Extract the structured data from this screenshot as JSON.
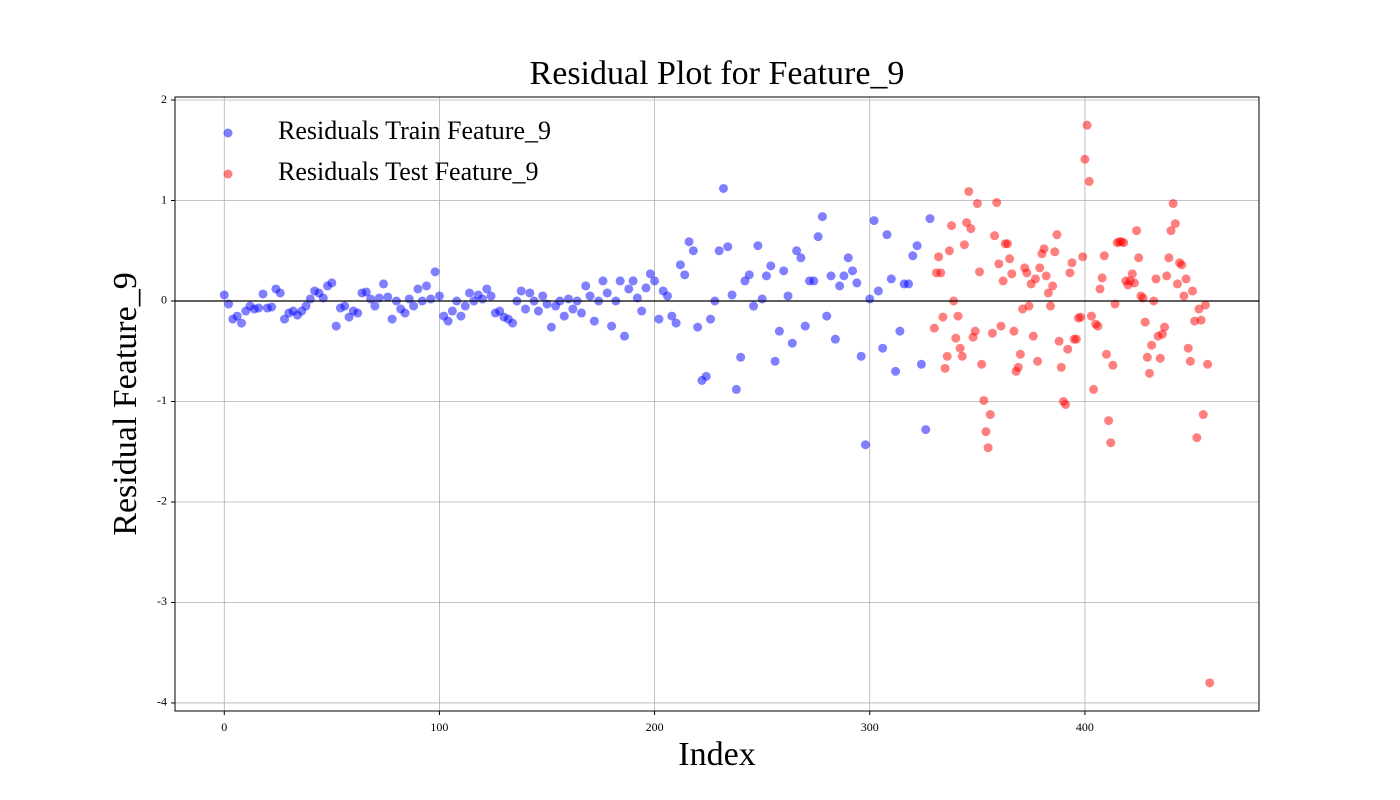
{
  "chart_data": {
    "type": "scatter",
    "title": "Residual Plot for Feature_9",
    "xlabel": "Index",
    "ylabel": "Residual Feature_9",
    "xlim": [
      -22.9,
      480.9
    ],
    "ylim": [
      -4.08,
      2.03
    ],
    "xticks": [
      0,
      100,
      200,
      300,
      400
    ],
    "yticks": [
      -4,
      -3,
      -2,
      -1,
      0,
      1,
      2
    ],
    "grid": true,
    "axhline": 0,
    "legend": "upper left",
    "alpha": 0.5,
    "series": [
      {
        "name": "Residuals Train Feature_9",
        "color": "blue",
        "x": [
          0,
          2,
          4,
          6,
          8,
          10,
          12,
          14,
          16,
          18,
          20,
          22,
          24,
          26,
          28,
          30,
          32,
          34,
          36,
          38,
          40,
          42,
          44,
          46,
          48,
          50,
          52,
          54,
          56,
          58,
          60,
          62,
          64,
          66,
          68,
          70,
          72,
          74,
          76,
          78,
          80,
          82,
          84,
          86,
          88,
          90,
          92,
          94,
          96,
          98,
          100,
          102,
          104,
          106,
          108,
          110,
          112,
          114,
          116,
          118,
          120,
          122,
          124,
          126,
          128,
          130,
          132,
          134,
          136,
          138,
          140,
          142,
          144,
          146,
          148,
          150,
          152,
          154,
          156,
          158,
          160,
          162,
          164,
          166,
          168,
          170,
          172,
          174,
          176,
          178,
          180,
          182,
          184,
          186,
          188,
          190,
          192,
          194,
          196,
          198,
          200,
          202,
          204,
          206,
          208,
          210,
          212,
          214,
          216,
          218,
          220,
          222,
          224,
          226,
          228,
          230,
          232,
          234,
          236,
          238,
          240,
          242,
          244,
          246,
          248,
          250,
          252,
          254,
          256,
          258,
          260,
          262,
          264,
          266,
          268,
          270,
          272,
          274,
          276,
          278,
          280,
          282,
          284,
          286,
          288,
          290,
          292,
          294,
          296,
          298,
          300,
          302,
          304,
          306,
          308,
          310,
          312,
          314,
          316,
          318,
          320,
          322,
          324,
          326,
          328
        ],
        "values": [
          0.06,
          -0.03,
          -0.18,
          -0.15,
          -0.22,
          -0.1,
          -0.05,
          -0.08,
          -0.07,
          0.07,
          -0.07,
          -0.06,
          0.12,
          0.08,
          -0.18,
          -0.12,
          -0.1,
          -0.14,
          -0.1,
          -0.05,
          0.02,
          0.1,
          0.08,
          0.03,
          0.15,
          0.18,
          -0.25,
          -0.07,
          -0.05,
          -0.16,
          -0.1,
          -0.12,
          0.08,
          0.09,
          0.02,
          -0.05,
          0.03,
          0.17,
          0.04,
          -0.18,
          0.0,
          -0.08,
          -0.12,
          0.02,
          -0.05,
          0.12,
          0.0,
          0.15,
          0.02,
          0.29,
          0.05,
          -0.15,
          -0.2,
          -0.1,
          0.0,
          -0.15,
          -0.05,
          0.08,
          0.0,
          0.06,
          0.02,
          0.12,
          0.05,
          -0.12,
          -0.1,
          -0.16,
          -0.18,
          -0.22,
          0.0,
          0.1,
          -0.08,
          0.08,
          0.0,
          -0.1,
          0.05,
          -0.03,
          -0.26,
          -0.05,
          0.0,
          -0.15,
          0.02,
          -0.08,
          0.0,
          -0.12,
          0.15,
          0.05,
          -0.2,
          0.0,
          0.2,
          0.08,
          -0.25,
          0.0,
          0.2,
          -0.35,
          0.12,
          0.2,
          0.03,
          -0.1,
          0.13,
          0.27,
          0.2,
          -0.18,
          0.1,
          0.05,
          -0.15,
          -0.22,
          0.36,
          0.26,
          0.59,
          0.5,
          -0.26,
          -0.79,
          -0.75,
          -0.18,
          0.0,
          0.5,
          1.12,
          0.54,
          0.06,
          -0.88,
          -0.56,
          0.2,
          0.26,
          -0.05,
          0.55,
          0.02,
          0.25,
          0.35,
          -0.6,
          -0.3,
          0.3,
          0.05,
          -0.42,
          0.5,
          0.43,
          -0.25,
          0.2,
          0.2,
          0.64,
          0.84,
          -0.15,
          0.25,
          -0.38,
          0.15,
          0.25,
          0.43,
          0.3,
          0.18,
          -0.55,
          -1.43,
          0.02,
          0.8,
          0.1,
          -0.47,
          0.66,
          0.22,
          -0.7,
          -0.3,
          0.17,
          0.17,
          0.45,
          0.55,
          -0.63,
          -1.28,
          0.82
        ]
      },
      {
        "name": "Residuals Test Feature_9",
        "color": "red",
        "x": [
          330,
          331,
          332,
          333,
          334,
          335,
          336,
          337,
          338,
          339,
          340,
          341,
          342,
          343,
          344,
          345,
          346,
          347,
          348,
          349,
          350,
          351,
          352,
          353,
          354,
          355,
          356,
          357,
          358,
          359,
          360,
          361,
          362,
          363,
          364,
          365,
          366,
          367,
          368,
          369,
          370,
          371,
          372,
          373,
          374,
          375,
          376,
          377,
          378,
          379,
          380,
          381,
          382,
          383,
          384,
          385,
          386,
          387,
          388,
          389,
          390,
          391,
          392,
          393,
          394,
          395,
          396,
          397,
          398,
          399,
          400,
          401,
          402,
          403,
          404,
          405,
          406,
          407,
          408,
          409,
          410,
          411,
          412,
          413,
          414,
          415,
          416,
          417,
          418,
          419,
          420,
          421,
          422,
          423,
          424,
          425,
          426,
          427,
          428,
          429,
          430,
          431,
          432,
          433,
          434,
          435,
          436,
          437,
          438,
          439,
          440,
          441,
          442,
          443,
          444,
          445,
          446,
          447,
          448,
          449,
          450,
          451,
          452,
          453,
          454,
          455,
          456,
          457,
          458
        ],
        "values": [
          -0.27,
          0.28,
          0.44,
          0.28,
          -0.16,
          -0.67,
          -0.55,
          0.5,
          0.75,
          0.0,
          -0.37,
          -0.15,
          -0.47,
          -0.55,
          0.56,
          0.78,
          1.09,
          0.72,
          -0.36,
          -0.3,
          0.97,
          0.29,
          -0.63,
          -0.99,
          -1.3,
          -1.46,
          -1.13,
          -0.32,
          0.65,
          0.98,
          0.37,
          -0.25,
          0.2,
          0.57,
          0.57,
          0.42,
          0.27,
          -0.3,
          -0.7,
          -0.66,
          -0.53,
          -0.08,
          0.33,
          0.28,
          -0.05,
          0.17,
          -0.35,
          0.22,
          -0.6,
          0.33,
          0.47,
          0.52,
          0.25,
          0.08,
          -0.05,
          0.15,
          0.49,
          0.66,
          -0.4,
          -0.66,
          -1.0,
          -1.03,
          -0.48,
          0.28,
          0.38,
          -0.38,
          -0.38,
          -0.17,
          -0.16,
          0.44,
          1.41,
          1.75,
          1.19,
          -0.15,
          -0.88,
          -0.23,
          -0.25,
          0.12,
          0.23,
          0.45,
          -0.53,
          -1.19,
          -1.41,
          -0.64,
          -0.03,
          0.58,
          0.59,
          0.59,
          0.58,
          0.2,
          0.16,
          0.2,
          0.27,
          0.18,
          0.7,
          0.43,
          0.05,
          0.03,
          -0.21,
          -0.56,
          -0.72,
          -0.44,
          0.0,
          0.22,
          -0.35,
          -0.57,
          -0.33,
          -0.26,
          0.25,
          0.43,
          0.7,
          0.97,
          0.77,
          0.17,
          0.38,
          0.36,
          0.05,
          0.22,
          -0.47,
          -0.6,
          0.1,
          -0.2,
          -1.36,
          -0.08,
          -0.19,
          -1.13,
          -0.04,
          -0.63,
          -3.8
        ]
      }
    ]
  }
}
